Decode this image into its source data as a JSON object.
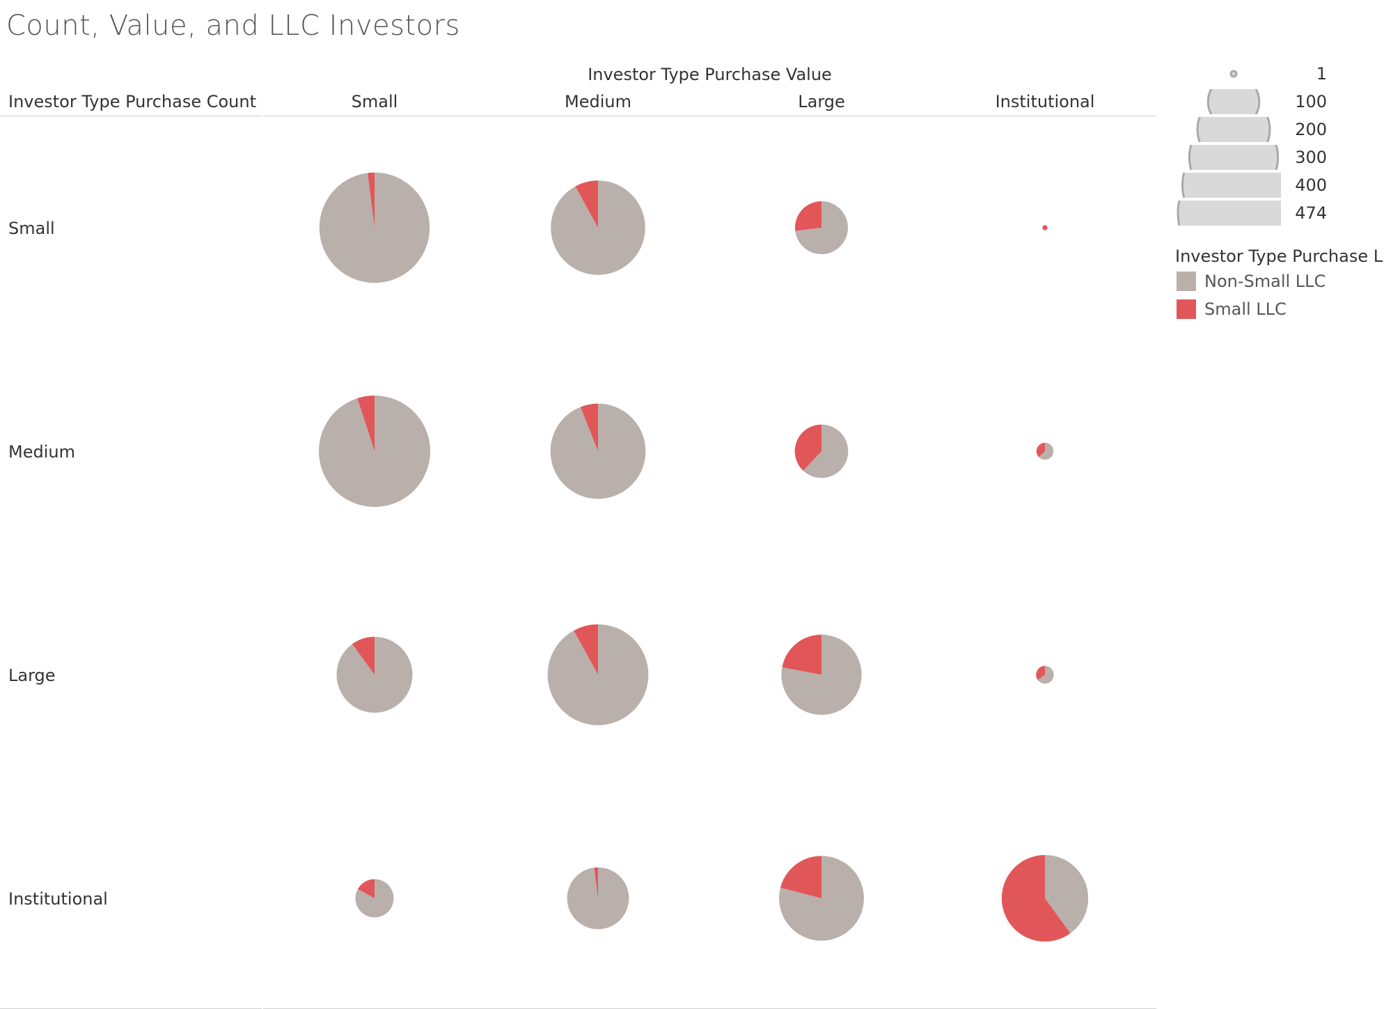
{
  "page_title": "Count, Value, and LLC Investors",
  "chart_data": {
    "type": "pie-grid",
    "title": "Count, Value, and LLC Investors",
    "column_field": "Investor Type Purchase Value",
    "row_field": "Investor Type Purchase Count",
    "columns": [
      "Small",
      "Medium",
      "Large",
      "Institutional"
    ],
    "rows": [
      "Small",
      "Medium",
      "Large",
      "Institutional"
    ],
    "series": [
      {
        "name": "Non-Small LLC",
        "color": "#bab0ab"
      },
      {
        "name": "Small LLC",
        "color": "#e15759"
      }
    ],
    "cells": [
      {
        "row": "Small",
        "column": "Small",
        "total": 465,
        "small_llc_share": 0.02
      },
      {
        "row": "Small",
        "column": "Medium",
        "total": 340,
        "small_llc_share": 0.08
      },
      {
        "row": "Small",
        "column": "Large",
        "total": 107,
        "small_llc_share": 0.27
      },
      {
        "row": "Small",
        "column": "Institutional",
        "total": 1,
        "small_llc_share": 1.0
      },
      {
        "row": "Medium",
        "column": "Small",
        "total": 474,
        "small_llc_share": 0.05
      },
      {
        "row": "Medium",
        "column": "Medium",
        "total": 346,
        "small_llc_share": 0.06
      },
      {
        "row": "Medium",
        "column": "Large",
        "total": 109,
        "small_llc_share": 0.38
      },
      {
        "row": "Medium",
        "column": "Institutional",
        "total": 11,
        "small_llc_share": 0.37
      },
      {
        "row": "Large",
        "column": "Small",
        "total": 220,
        "small_llc_share": 0.1
      },
      {
        "row": "Large",
        "column": "Medium",
        "total": 388,
        "small_llc_share": 0.08
      },
      {
        "row": "Large",
        "column": "Large",
        "total": 246,
        "small_llc_share": 0.22
      },
      {
        "row": "Large",
        "column": "Institutional",
        "total": 12,
        "small_llc_share": 0.35
      },
      {
        "row": "Institutional",
        "column": "Small",
        "total": 56,
        "small_llc_share": 0.17
      },
      {
        "row": "Institutional",
        "column": "Medium",
        "total": 146,
        "small_llc_share": 0.02
      },
      {
        "row": "Institutional",
        "column": "Large",
        "total": 275,
        "small_llc_share": 0.21
      },
      {
        "row": "Institutional",
        "column": "Institutional",
        "total": 286,
        "small_llc_share": 0.6
      }
    ],
    "size_legend": {
      "values": [
        1,
        100,
        200,
        300,
        400,
        474
      ]
    },
    "color_legend": {
      "title": "Investor Type Purchase Llc",
      "items": [
        "Non-Small LLC",
        "Small LLC"
      ]
    }
  }
}
